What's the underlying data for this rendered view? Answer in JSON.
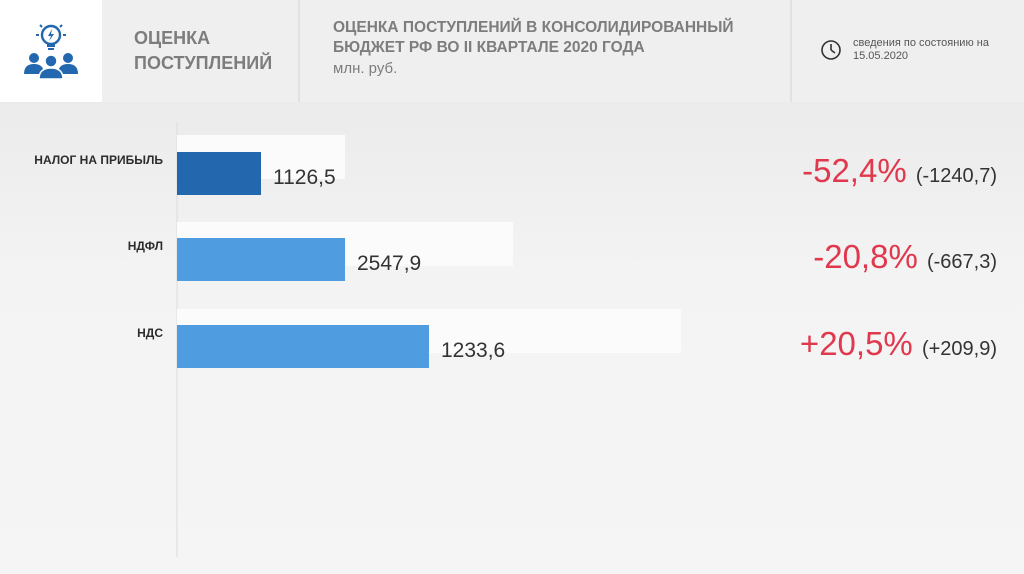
{
  "header": {
    "section_title": "ОЦЕНКА ПОСТУПЛЕНИЙ",
    "title_line1": "ОЦЕНКА ПОСТУПЛЕНИЙ В КОНСОЛИДИРОВАННЫЙ",
    "title_line2": "БЮДЖЕТ РФ ВО  II КВАРТАЛЕ 2020 ГОДА",
    "unit": "млн. руб.",
    "date_note_line1": "сведения по состоянию на",
    "date_note_line2": "15.05.2020",
    "logo_icon": "team-lightbulb-icon",
    "clock_icon": "clock-icon"
  },
  "colors": {
    "bar_dark": "#2368ae",
    "bar_light": "#4f9de0",
    "ghost_bar": "#fbfbfb",
    "change_text": "#e0384d",
    "label_text": "#2c2c2c",
    "value_text": "#333333"
  },
  "chart_data": {
    "type": "bar",
    "orientation": "horizontal",
    "categories": [
      "НАЛОГ НА ПРИБЫЛЬ",
      "НДФЛ",
      "НДС"
    ],
    "values": [
      1126.5,
      2547.9,
      1233.6
    ],
    "value_labels": [
      "1126,5",
      "2547,9",
      "1233,6"
    ],
    "bar_lengths": [
      0.2,
      0.4,
      0.6
    ],
    "reference_lengths": [
      0.4,
      0.8,
      1.2
    ],
    "change_percent": [
      "-52,4%",
      "-20,8%",
      "+20,5%"
    ],
    "change_abs": [
      "(-1240,7)",
      "(-667,3)",
      "(+209,9)"
    ],
    "title": "ОЦЕНКА ПОСТУПЛЕНИЙ В КОНСОЛИДИРОВАННЫЙ БЮДЖЕТ РФ ВО  II КВАРТАЛЕ 2020 ГОДА",
    "unit": "млн. руб."
  }
}
